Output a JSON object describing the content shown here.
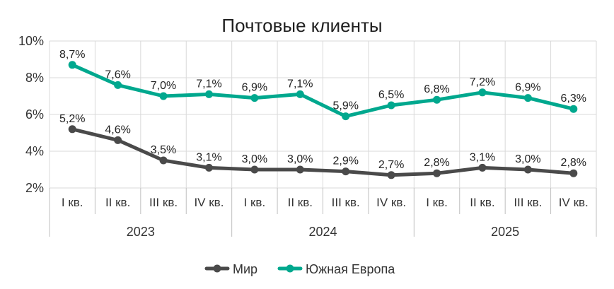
{
  "chart_data": {
    "type": "line",
    "title": "Почтовые клиенты",
    "categories": [
      "I кв.",
      "II кв.",
      "III кв.",
      "IV кв.",
      "I кв.",
      "II кв.",
      "III кв.",
      "IV кв.",
      "I кв.",
      "II кв.",
      "III кв.",
      "IV кв."
    ],
    "groups": [
      {
        "label": "2023",
        "count": 4
      },
      {
        "label": "2024",
        "count": 4
      },
      {
        "label": "2025",
        "count": 4
      }
    ],
    "series": [
      {
        "name": "Мир",
        "color": "#4a4a4a",
        "values": [
          5.2,
          4.6,
          3.5,
          3.1,
          3.0,
          3.0,
          2.9,
          2.7,
          2.8,
          3.1,
          3.0,
          2.8
        ],
        "labels": [
          "5,2%",
          "4,6%",
          "3,5%",
          "3,1%",
          "3,0%",
          "3,0%",
          "2,9%",
          "2,7%",
          "2,8%",
          "3,1%",
          "3,0%",
          "2,8%"
        ]
      },
      {
        "name": "Южная Европа",
        "color": "#00a88e",
        "values": [
          8.7,
          7.6,
          7.0,
          7.1,
          6.9,
          7.1,
          5.9,
          6.5,
          6.8,
          7.2,
          6.9,
          6.3
        ],
        "labels": [
          "8,7%",
          "7,6%",
          "7,0%",
          "7,1%",
          "6,9%",
          "7,1%",
          "5,9%",
          "6,5%",
          "6,8%",
          "7,2%",
          "6,9%",
          "6,3%"
        ]
      }
    ],
    "ylim": [
      2,
      10
    ],
    "yticks": [
      2,
      4,
      6,
      8,
      10
    ],
    "ytick_labels": [
      "2%",
      "4%",
      "6%",
      "8%",
      "10%"
    ],
    "grid": true,
    "legend_position": "bottom"
  }
}
